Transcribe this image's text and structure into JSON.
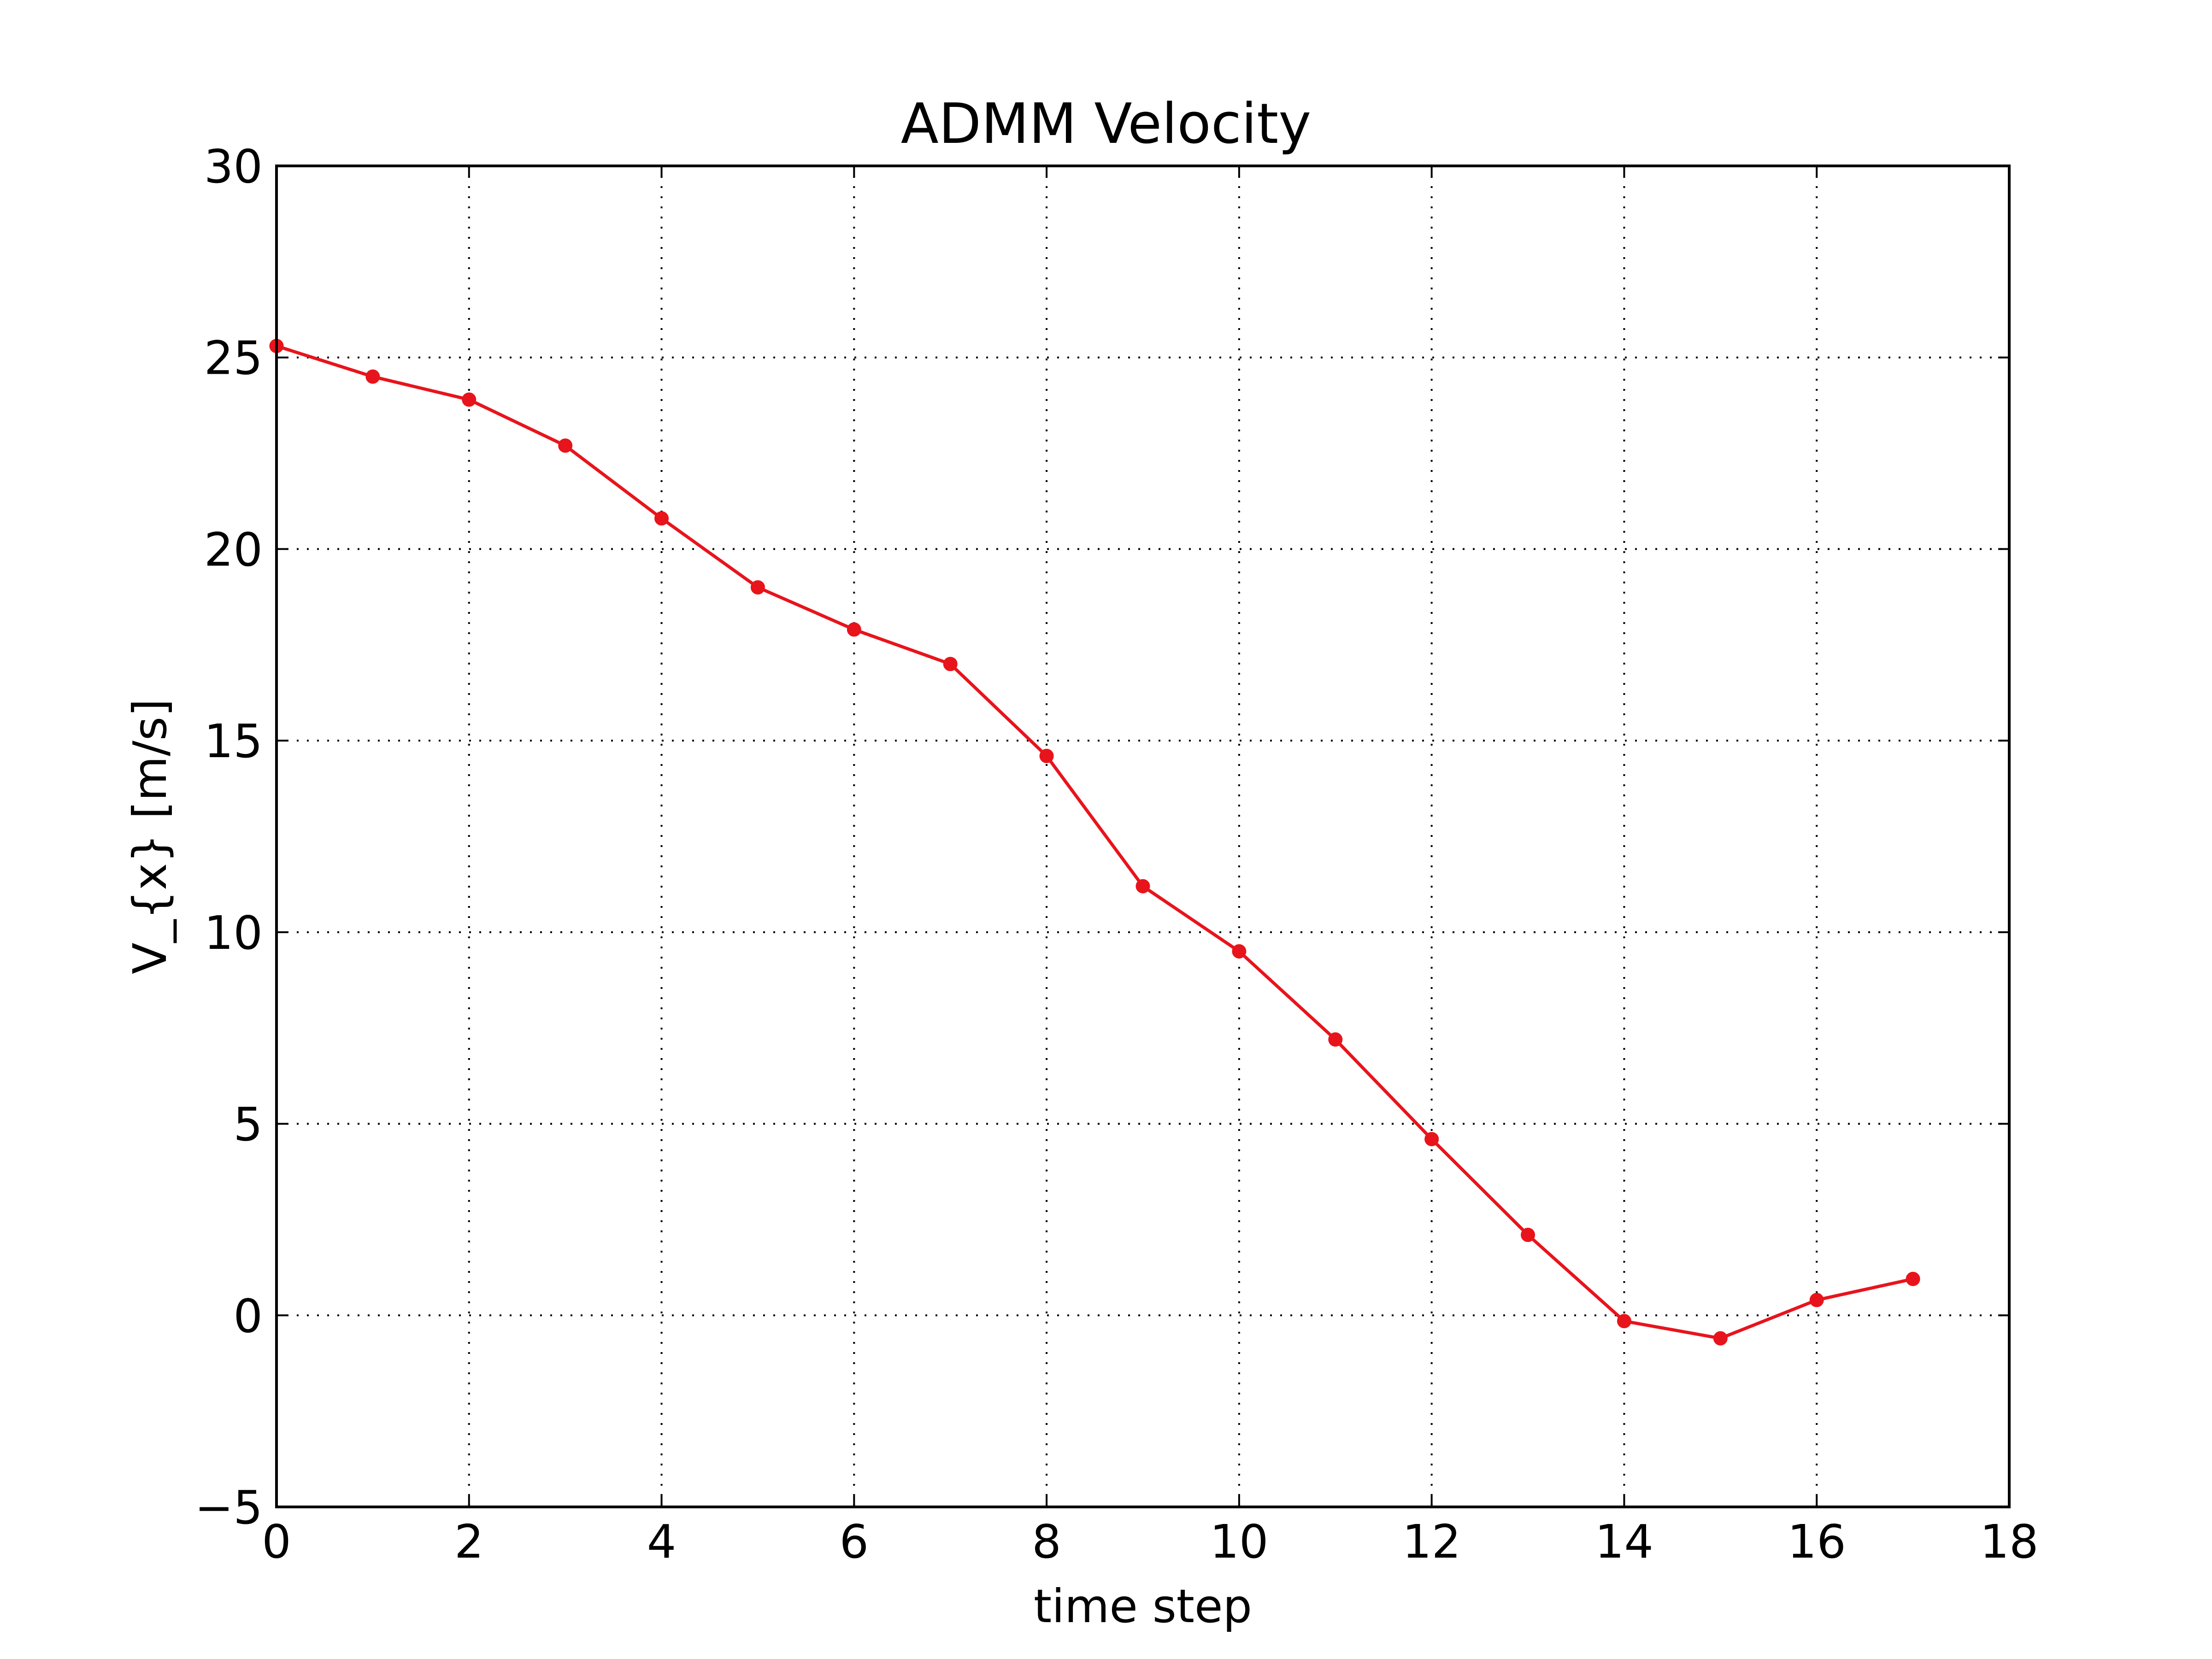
{
  "chart_data": {
    "type": "line",
    "title": "ADMM Velocity",
    "xlabel": "time step",
    "ylabel": "V_{x} [m/s]",
    "xlim": [
      0,
      18
    ],
    "ylim": [
      -5,
      30
    ],
    "xticks": [
      0,
      2,
      4,
      6,
      8,
      10,
      12,
      14,
      16,
      18
    ],
    "yticks": [
      -5,
      0,
      5,
      10,
      15,
      20,
      25,
      30
    ],
    "xtick_labels": [
      "0",
      "2",
      "4",
      "6",
      "8",
      "10",
      "12",
      "14",
      "16",
      "18"
    ],
    "ytick_labels": [
      "−5",
      "0",
      "5",
      "10",
      "15",
      "20",
      "25",
      "30"
    ],
    "grid": true,
    "series": [
      {
        "color": "#e8141c",
        "marker": "circle",
        "x": [
          0,
          1,
          2,
          3,
          4,
          5,
          6,
          7,
          8,
          9,
          10,
          11,
          12,
          13,
          14,
          15,
          16,
          17
        ],
        "y": [
          25.3,
          24.5,
          23.9,
          22.7,
          20.8,
          19.0,
          17.9,
          17.0,
          14.6,
          11.2,
          9.5,
          7.2,
          4.6,
          2.1,
          -0.15,
          -0.6,
          0.4,
          0.95
        ]
      }
    ]
  }
}
